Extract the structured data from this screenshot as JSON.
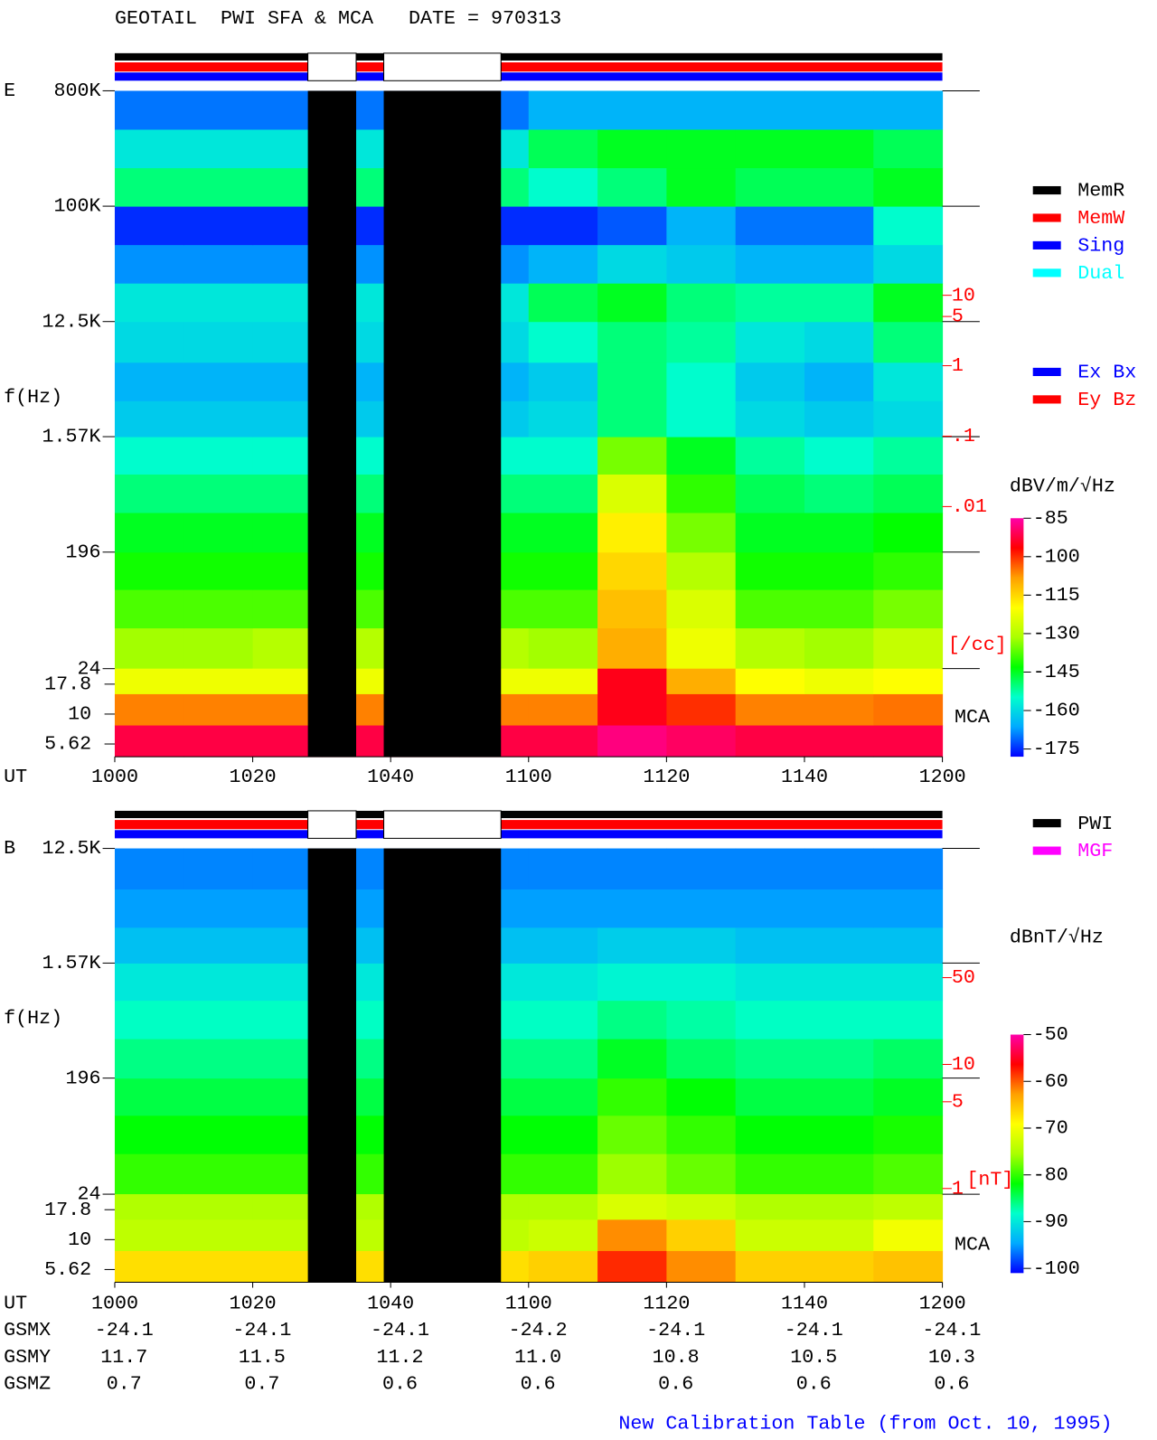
{
  "title": "GEOTAIL  PWI SFA & MCA   DATE = 970313",
  "footer": "New Calibration Table (from Oct. 10, 1995)",
  "chart_data": [
    {
      "type": "spectrogram",
      "label": "E",
      "ylabel": "f(Hz)",
      "xlabel": "UT",
      "xlim": [
        600,
        720
      ],
      "xticks": [
        {
          "value": 600,
          "label": "1000"
        },
        {
          "value": 620,
          "label": "1020"
        },
        {
          "value": 640,
          "label": "1040"
        },
        {
          "value": 660,
          "label": "1100"
        },
        {
          "value": 680,
          "label": "1120"
        },
        {
          "value": 700,
          "label": "1140"
        },
        {
          "value": 720,
          "label": "1200"
        }
      ],
      "log_y": true,
      "ylim": [
        24,
        800000
      ],
      "yticks": [
        {
          "value": 800000,
          "label": "800K"
        },
        {
          "value": 100000,
          "label": "100K"
        },
        {
          "value": 12500,
          "label": "12.5K"
        },
        {
          "value": 1570,
          "label": "1.57K"
        },
        196,
        24
      ],
      "mca_label": "MCA",
      "mca_ylim": [
        4.4,
        24
      ],
      "mca_yticks": [
        17.8,
        10,
        5.62
      ],
      "x_edges": [
        600,
        610,
        620,
        630,
        640,
        650,
        660,
        670,
        680,
        690,
        700,
        710,
        720
      ],
      "y_edges": [
        24,
        50,
        100,
        196,
        400,
        800,
        1570,
        3000,
        6000,
        12500,
        25000,
        50000,
        100000,
        200000,
        400000,
        800000
      ],
      "z": [
        [
          -132,
          -132,
          -130,
          -130,
          -130,
          -130,
          -132,
          -110,
          -122,
          -130,
          -132,
          -128
        ],
        [
          -138,
          -138,
          -138,
          -138,
          -138,
          -138,
          -138,
          -112,
          -125,
          -138,
          -138,
          -135
        ],
        [
          -142,
          -142,
          -142,
          -142,
          -142,
          -142,
          -142,
          -115,
          -130,
          -142,
          -142,
          -140
        ],
        [
          -145,
          -145,
          -145,
          -145,
          -145,
          -145,
          -145,
          -118,
          -135,
          -145,
          -145,
          -143
        ],
        [
          -150,
          -150,
          -150,
          -150,
          -150,
          -150,
          -150,
          -125,
          -140,
          -148,
          -150,
          -148
        ],
        [
          -155,
          -155,
          -155,
          -155,
          -155,
          -155,
          -155,
          -135,
          -145,
          -152,
          -155,
          -152
        ],
        [
          -162,
          -162,
          -162,
          -162,
          -162,
          -162,
          -160,
          -150,
          -155,
          -160,
          -162,
          -160
        ],
        [
          -165,
          -165,
          -165,
          -165,
          -165,
          -165,
          -162,
          -150,
          -155,
          -162,
          -165,
          -158
        ],
        [
          -160,
          -160,
          -160,
          -160,
          -160,
          -160,
          -155,
          -150,
          -152,
          -158,
          -160,
          -150
        ],
        [
          -158,
          -158,
          -158,
          -158,
          -158,
          -158,
          -148,
          -145,
          -150,
          -152,
          -152,
          -145
        ],
        [
          -168,
          -168,
          -168,
          -168,
          -168,
          -168,
          -165,
          -160,
          -162,
          -165,
          -165,
          -160
        ],
        [
          -175,
          -175,
          -175,
          -175,
          -175,
          -175,
          -175,
          -172,
          -165,
          -170,
          -170,
          -155
        ],
        [
          -150,
          -150,
          -150,
          -150,
          -150,
          -150,
          -155,
          -150,
          -145,
          -148,
          -148,
          -145
        ],
        [
          -158,
          -158,
          -158,
          -158,
          -158,
          -158,
          -148,
          -145,
          -145,
          -145,
          -145,
          -148
        ],
        [
          -170,
          -170,
          -170,
          -170,
          -170,
          -170,
          -165,
          -165,
          -165,
          -165,
          -165,
          -165
        ]
      ],
      "mca_y_edges": [
        4.4,
        8.1,
        14.8,
        24
      ],
      "mca_z": [
        [
          -92,
          -92,
          -92,
          -92,
          -92,
          -92,
          -92,
          -88,
          -90,
          -92,
          -92,
          -92
        ],
        [
          -106,
          -106,
          -106,
          -106,
          -106,
          -106,
          -106,
          -95,
          -100,
          -106,
          -106,
          -105
        ],
        [
          -122,
          -122,
          -122,
          -122,
          -122,
          -122,
          -122,
          -95,
          -110,
          -120,
          -122,
          -120
        ]
      ],
      "data_gaps": [
        [
          628,
          635
        ],
        [
          639,
          656
        ]
      ],
      "colorbar": {
        "title": "dBV/m/√Hz",
        "lim": [
          -178,
          -85
        ],
        "ticks": [
          -85,
          -100,
          -115,
          -130,
          -145,
          -160,
          -175
        ],
        "colormap": [
          "#0000ff",
          "#00aaff",
          "#00ffcc",
          "#00ff00",
          "#aaff00",
          "#ffff00",
          "#ffa000",
          "#ff0000",
          "#ff00aa"
        ]
      },
      "density_scale": {
        "color": "#ff0000",
        "lim": [
          5e-05,
          8000
        ],
        "ticks": [
          10,
          5,
          1,
          {
            "value": 0.1,
            "label": ".1"
          },
          {
            "value": 0.01,
            "label": ".01"
          }
        ],
        "unit": "[/cc]"
      },
      "legend": [
        {
          "name": "MemR",
          "color": "#000000"
        },
        {
          "name": "MemW",
          "color": "#ff0000"
        },
        {
          "name": "Sing",
          "color": "#0000ff"
        },
        {
          "name": "Dual",
          "color": "#00ffff"
        }
      ],
      "legend2": [
        {
          "name": "Ex Bx",
          "color": "#0000ff"
        },
        {
          "name": "Ey Bz",
          "color": "#ff0000"
        }
      ]
    },
    {
      "type": "spectrogram",
      "label": "B",
      "ylabel": "f(Hz)",
      "xlabel": "UT",
      "xlim": [
        600,
        720
      ],
      "xticks": [
        {
          "value": 600,
          "label": "1000"
        },
        {
          "value": 620,
          "label": "1020"
        },
        {
          "value": 640,
          "label": "1040"
        },
        {
          "value": 660,
          "label": "1100"
        },
        {
          "value": 680,
          "label": "1120"
        },
        {
          "value": 700,
          "label": "1140"
        },
        {
          "value": 720,
          "label": "1200"
        }
      ],
      "log_y": true,
      "ylim": [
        24,
        12500
      ],
      "yticks": [
        {
          "value": 12500,
          "label": "12.5K"
        },
        {
          "value": 1570,
          "label": "1.57K"
        },
        196,
        24
      ],
      "mca_label": "MCA",
      "mca_ylim": [
        4.4,
        24
      ],
      "mca_yticks": [
        17.8,
        10,
        5.62
      ],
      "x_edges": [
        600,
        610,
        620,
        630,
        640,
        650,
        660,
        670,
        680,
        690,
        700,
        710,
        720
      ],
      "y_edges": [
        24,
        50,
        100,
        196,
        400,
        800,
        1570,
        3000,
        6000,
        12500
      ],
      "z": [
        [
          -80,
          -80,
          -80,
          -80,
          -80,
          -80,
          -80,
          -76,
          -78,
          -80,
          -80,
          -79
        ],
        [
          -82,
          -82,
          -82,
          -82,
          -82,
          -82,
          -82,
          -78,
          -80,
          -82,
          -82,
          -81
        ],
        [
          -84,
          -84,
          -84,
          -84,
          -84,
          -84,
          -84,
          -80,
          -82,
          -84,
          -84,
          -83
        ],
        [
          -86,
          -86,
          -86,
          -86,
          -86,
          -86,
          -86,
          -83,
          -85,
          -86,
          -86,
          -85
        ],
        [
          -88,
          -88,
          -88,
          -88,
          -88,
          -88,
          -88,
          -86,
          -87,
          -88,
          -88,
          -88
        ],
        [
          -90,
          -90,
          -90,
          -90,
          -90,
          -90,
          -90,
          -89,
          -89,
          -90,
          -90,
          -90
        ],
        [
          -93,
          -93,
          -93,
          -93,
          -93,
          -93,
          -93,
          -92,
          -92,
          -93,
          -93,
          -93
        ],
        [
          -95,
          -95,
          -95,
          -95,
          -95,
          -95,
          -95,
          -95,
          -95,
          -95,
          -95,
          -95
        ],
        [
          -96,
          -96,
          -96,
          -96,
          -96,
          -96,
          -96,
          -96,
          -96,
          -96,
          -96,
          -96
        ]
      ],
      "mca_y_edges": [
        4.4,
        8.1,
        14.8,
        24
      ],
      "mca_z": [
        [
          -67,
          -67,
          -67,
          -67,
          -67,
          -67,
          -66,
          -58,
          -62,
          -66,
          -66,
          -65
        ],
        [
          -74,
          -74,
          -74,
          -74,
          -74,
          -74,
          -73,
          -62,
          -66,
          -73,
          -73,
          -70
        ],
        [
          -75,
          -75,
          -75,
          -75,
          -75,
          -75,
          -75,
          -72,
          -73,
          -75,
          -75,
          -74
        ]
      ],
      "data_gaps": [
        [
          628,
          635
        ],
        [
          639,
          656
        ]
      ],
      "colorbar": {
        "title": "dBnT/√Hz",
        "lim": [
          -101,
          -50
        ],
        "ticks": [
          -50,
          -60,
          -70,
          -80,
          -90,
          -100
        ],
        "colormap": [
          "#0000ff",
          "#00aaff",
          "#00ffcc",
          "#00ff00",
          "#aaff00",
          "#ffff00",
          "#ffa000",
          "#ff0000",
          "#ff00aa"
        ]
      },
      "density_scale": {
        "color": "#ff0000",
        "lim": [
          0.9,
          550
        ],
        "ticks": [
          50,
          10,
          5,
          1
        ],
        "unit": "[nT]"
      },
      "legend": [
        {
          "name": "PWI",
          "color": "#000000"
        },
        {
          "name": "MGF",
          "color": "#ff00ff"
        }
      ]
    }
  ],
  "orbit": {
    "rows": [
      {
        "name": "GSMX",
        "values": [
          "-24.1",
          "-24.1",
          "-24.1",
          "-24.2",
          "-24.1",
          "-24.1",
          "-24.1"
        ]
      },
      {
        "name": "GSMY",
        "values": [
          "11.7",
          "11.5",
          "11.2",
          "11.0",
          "10.8",
          "10.5",
          "10.3"
        ]
      },
      {
        "name": "GSMZ",
        "values": [
          "0.7",
          "0.7",
          "0.6",
          "0.6",
          "0.6",
          "0.6",
          "0.6"
        ]
      }
    ]
  }
}
